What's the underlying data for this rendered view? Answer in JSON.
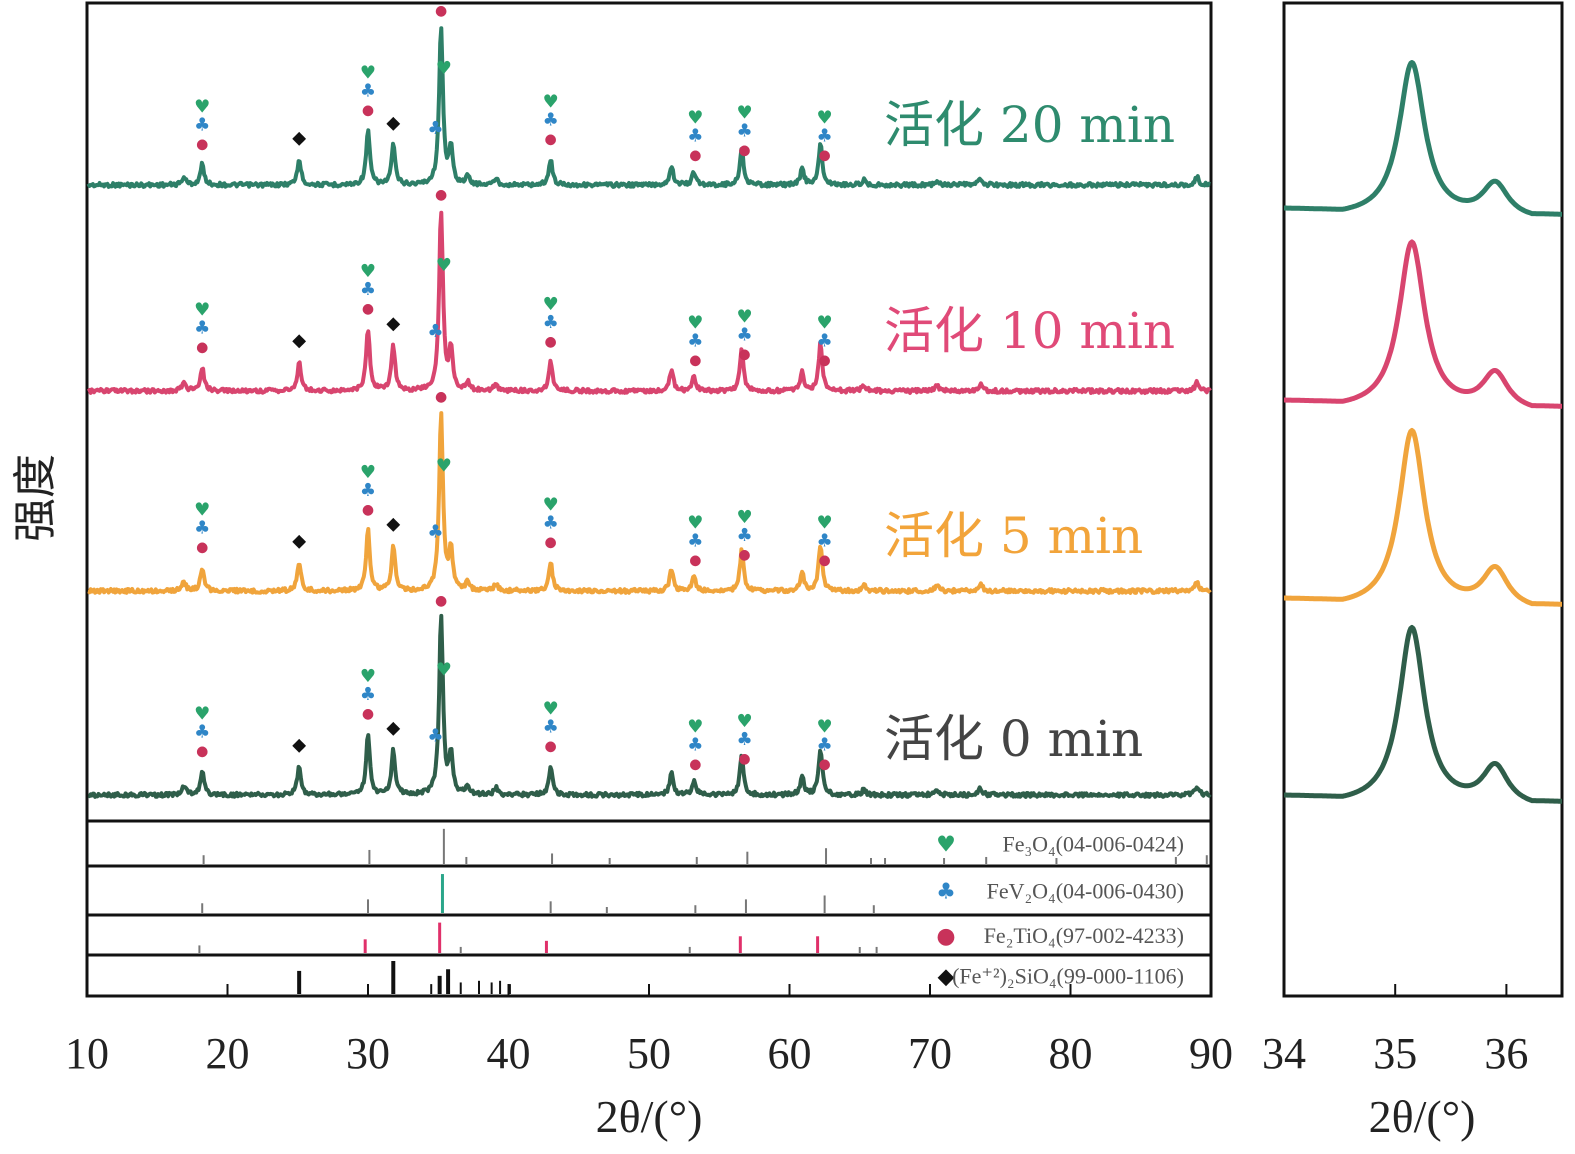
{
  "chart_data": {
    "type": "line",
    "ylabel": "强度",
    "colors": {
      "fe3o4": "#2aa36b",
      "fev2o4": "#2f86c7",
      "fe2tio4": "#c8325a",
      "fe2sio4": "#111111",
      "ref_line_default": "#777777",
      "ref_fev2o4_main": "#2aa68a",
      "ref_fe2tio4_main": "#e0306a"
    },
    "main_panel": {
      "xlabel": "2θ/(°)",
      "xlim": [
        10,
        90
      ],
      "xticks": [
        10,
        20,
        30,
        40,
        50,
        60,
        70,
        80,
        90
      ],
      "tick_labels": [
        "10",
        "20",
        "30",
        "40",
        "50",
        "60",
        "70",
        "80",
        "90"
      ],
      "series": [
        {
          "name": "活化 20 min",
          "color": "#2e8b6e",
          "line_color": "#2e7f68"
        },
        {
          "name": "活化 10 min",
          "color": "#e04a78",
          "line_color": "#d8456f"
        },
        {
          "name": "活化 5 min",
          "color": "#f2a43a",
          "line_color": "#f0a43c"
        },
        {
          "name": "活化 0 min",
          "color": "#444444",
          "line_color": "#2f5e4a"
        }
      ],
      "peaks": [
        {
          "x": 16.9,
          "h": 0.05
        },
        {
          "x": 18.2,
          "h": 0.13
        },
        {
          "x": 25.1,
          "h": 0.16
        },
        {
          "x": 30.0,
          "h": 0.34
        },
        {
          "x": 31.8,
          "h": 0.25
        },
        {
          "x": 35.2,
          "h": 1.0
        },
        {
          "x": 35.9,
          "h": 0.22
        },
        {
          "x": 37.1,
          "h": 0.05
        },
        {
          "x": 39.1,
          "h": 0.04
        },
        {
          "x": 43.0,
          "h": 0.16
        },
        {
          "x": 51.6,
          "h": 0.12
        },
        {
          "x": 53.2,
          "h": 0.08
        },
        {
          "x": 56.6,
          "h": 0.23
        },
        {
          "x": 60.9,
          "h": 0.1
        },
        {
          "x": 62.2,
          "h": 0.26
        },
        {
          "x": 65.3,
          "h": 0.03
        },
        {
          "x": 70.5,
          "h": 0.03
        },
        {
          "x": 73.6,
          "h": 0.04
        },
        {
          "x": 89.0,
          "h": 0.05
        }
      ],
      "markers": {
        "fe3o4": "♥",
        "fev2o4": "♣",
        "fe2tio4": "●",
        "fe2sio4": "◆"
      },
      "phase_peaks": {
        "fe3o4": [
          18.2,
          30.0,
          35.4,
          43.0,
          53.3,
          56.8,
          62.5
        ],
        "fev2o4": [
          18.2,
          30.0,
          34.8,
          43.0,
          53.3,
          56.8,
          62.5
        ],
        "fe2tio4": [
          18.2,
          30.0,
          35.2,
          43.0,
          53.3,
          56.8,
          62.5
        ],
        "fe2sio4": [
          25.1,
          31.8
        ]
      }
    },
    "reference_patterns": [
      {
        "name": "Fe₃O₄(04-006-0424)",
        "marker": "♥",
        "lines": [
          {
            "x": 18.3,
            "h": 0.25
          },
          {
            "x": 30.1,
            "h": 0.4
          },
          {
            "x": 35.4,
            "h": 1.0
          },
          {
            "x": 37.0,
            "h": 0.2
          },
          {
            "x": 43.1,
            "h": 0.3
          },
          {
            "x": 47.2,
            "h": 0.15
          },
          {
            "x": 53.4,
            "h": 0.2
          },
          {
            "x": 57.0,
            "h": 0.35
          },
          {
            "x": 62.6,
            "h": 0.45
          },
          {
            "x": 65.8,
            "h": 0.15
          },
          {
            "x": 66.8,
            "h": 0.15
          },
          {
            "x": 71.0,
            "h": 0.15
          },
          {
            "x": 74.0,
            "h": 0.2
          },
          {
            "x": 79.0,
            "h": 0.15
          },
          {
            "x": 87.5,
            "h": 0.2
          },
          {
            "x": 89.7,
            "h": 0.25
          }
        ]
      },
      {
        "name": "FeV₂O₄(04-006-0430)",
        "marker": "♣",
        "lines": [
          {
            "x": 18.2,
            "h": 0.25
          },
          {
            "x": 30.0,
            "h": 0.35
          },
          {
            "x": 35.3,
            "h": 1.0
          },
          {
            "x": 43.0,
            "h": 0.3
          },
          {
            "x": 47.0,
            "h": 0.15
          },
          {
            "x": 53.3,
            "h": 0.2
          },
          {
            "x": 56.9,
            "h": 0.35
          },
          {
            "x": 62.5,
            "h": 0.45
          },
          {
            "x": 66.0,
            "h": 0.2
          }
        ]
      },
      {
        "name": "Fe₂TiO₄(97-002-4233)",
        "marker": "●",
        "lines": [
          {
            "x": 18.0,
            "h": 0.25
          },
          {
            "x": 29.8,
            "h": 0.45
          },
          {
            "x": 35.1,
            "h": 1.0
          },
          {
            "x": 36.6,
            "h": 0.2
          },
          {
            "x": 42.7,
            "h": 0.4
          },
          {
            "x": 52.9,
            "h": 0.2
          },
          {
            "x": 56.5,
            "h": 0.55
          },
          {
            "x": 62.0,
            "h": 0.55
          },
          {
            "x": 65.0,
            "h": 0.15
          },
          {
            "x": 66.2,
            "h": 0.2
          }
        ]
      },
      {
        "name": "(Fe⁺²)₂SiO₄(99-000-1106)",
        "marker": "◆",
        "lines": [
          {
            "x": 20.0,
            "h": 0.25
          },
          {
            "x": 25.1,
            "h": 0.7
          },
          {
            "x": 31.8,
            "h": 1.0
          },
          {
            "x": 34.5,
            "h": 0.3
          },
          {
            "x": 35.1,
            "h": 0.55
          },
          {
            "x": 35.7,
            "h": 0.75
          },
          {
            "x": 36.6,
            "h": 0.35
          },
          {
            "x": 37.9,
            "h": 0.4
          },
          {
            "x": 38.8,
            "h": 0.35
          },
          {
            "x": 39.4,
            "h": 0.4
          },
          {
            "x": 40.1,
            "h": 0.3
          },
          {
            "x": 50.0,
            "h": 0.25
          },
          {
            "x": 60.0,
            "h": 0.25
          },
          {
            "x": 70.0,
            "h": 0.25
          }
        ]
      }
    ],
    "zoom_panel": {
      "xlabel": "2θ/(°)",
      "xlim": [
        34,
        36.5
      ],
      "xticks": [
        34,
        35,
        36
      ],
      "tick_labels": [
        "34",
        "35",
        "36"
      ],
      "peaks": [
        {
          "x": 35.15,
          "h": 1.0
        },
        {
          "x": 35.9,
          "h": 0.22
        }
      ]
    }
  }
}
